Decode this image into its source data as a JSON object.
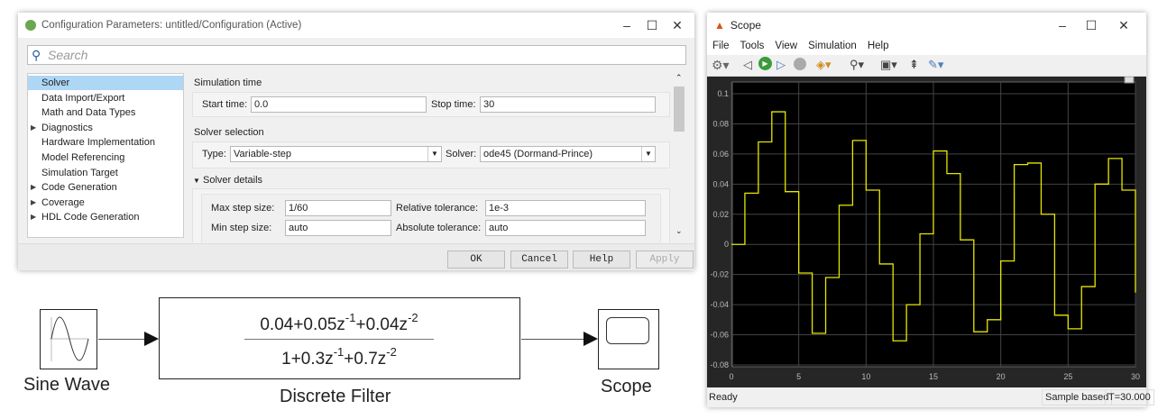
{
  "config": {
    "title": "Configuration Parameters: untitled/Configuration (Active)",
    "search_placeholder": "Search",
    "tree": [
      {
        "label": "Solver",
        "selected": true,
        "expandable": false
      },
      {
        "label": "Data Import/Export",
        "expandable": false
      },
      {
        "label": "Math and Data Types",
        "expandable": false
      },
      {
        "label": "Diagnostics",
        "expandable": true
      },
      {
        "label": "Hardware Implementation",
        "expandable": false
      },
      {
        "label": "Model Referencing",
        "expandable": false
      },
      {
        "label": "Simulation Target",
        "expandable": false
      },
      {
        "label": "Code Generation",
        "expandable": true
      },
      {
        "label": "Coverage",
        "expandable": true
      },
      {
        "label": "HDL Code Generation",
        "expandable": true
      }
    ],
    "sim_time": {
      "heading": "Simulation time",
      "start_label": "Start time:",
      "start_value": "0.0",
      "stop_label": "Stop time:",
      "stop_value": "30"
    },
    "solver_sel": {
      "heading": "Solver selection",
      "type_label": "Type:",
      "type_value": "Variable-step",
      "solver_label": "Solver:",
      "solver_value": "ode45 (Dormand-Prince)"
    },
    "details": {
      "heading": "Solver details",
      "max_label": "Max step size:",
      "max_value": "1/60",
      "rel_label": "Relative tolerance:",
      "rel_value": "1e-3",
      "min_label": "Min step size:",
      "min_value": "auto",
      "abs_label": "Absolute tolerance:",
      "abs_value": "auto"
    },
    "buttons": {
      "ok": "OK",
      "cancel": "Cancel",
      "help": "Help",
      "apply": "Apply"
    }
  },
  "model": {
    "sine_label": "Sine Wave",
    "filter_label": "Discrete Filter",
    "scope_label": "Scope",
    "num": [
      "0.04+0.05z",
      "-1",
      "+0.04z",
      "-2"
    ],
    "den": [
      "1+0.3z",
      "-1",
      "+0.7z",
      "-2"
    ]
  },
  "scope": {
    "title": "Scope",
    "menu": [
      "File",
      "Tools",
      "View",
      "Simulation",
      "Help"
    ],
    "status": "Ready",
    "mode": "Sample based",
    "time": "T=30.000",
    "chart_data": {
      "type": "line",
      "step": true,
      "color": "#e6e600",
      "xlim": [
        0,
        30
      ],
      "ylim": [
        -0.08,
        0.1
      ],
      "xticks": [
        0,
        5,
        10,
        15,
        20,
        25,
        30
      ],
      "yticks": [
        0.1,
        0.08,
        0.06,
        0.04,
        0.02,
        0,
        -0.02,
        -0.04,
        -0.06,
        -0.08
      ],
      "grid": true,
      "x": [
        0,
        1,
        2,
        3,
        4,
        5,
        6,
        7,
        8,
        9,
        10,
        11,
        12,
        13,
        14,
        15,
        16,
        17,
        18,
        19,
        20,
        21,
        22,
        23,
        24,
        25,
        26,
        27,
        28,
        29,
        30
      ],
      "y": [
        0,
        0.034,
        0.068,
        0.088,
        0.035,
        -0.019,
        -0.059,
        -0.022,
        0.026,
        0.069,
        0.036,
        -0.013,
        -0.064,
        -0.04,
        0.007,
        0.062,
        0.047,
        0.003,
        -0.058,
        -0.05,
        -0.011,
        0.053,
        0.054,
        0.02,
        -0.047,
        -0.056,
        -0.028,
        0.04,
        0.057,
        0.036,
        -0.032
      ]
    }
  }
}
